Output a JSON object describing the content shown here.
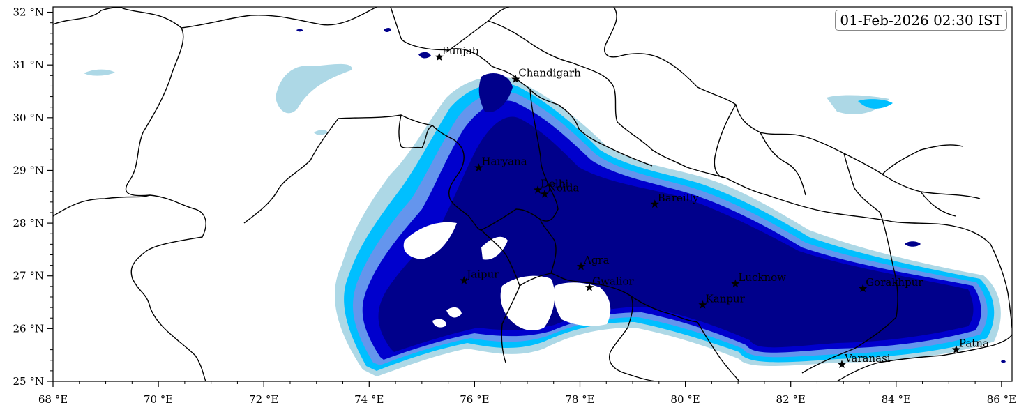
{
  "timestamp": "01-Feb-2026 02:30 IST",
  "map": {
    "lon_range": [
      68,
      86.2
    ],
    "lat_range": [
      25,
      32.1
    ],
    "x_ticks": [
      68,
      70,
      72,
      74,
      76,
      78,
      80,
      82,
      84,
      86
    ],
    "x_tick_labels": [
      "68 °E",
      "70 °E",
      "72 °E",
      "74 °E",
      "76 °E",
      "78 °E",
      "80 °E",
      "82 °E",
      "84 °E",
      "86 °E"
    ],
    "y_ticks": [
      25,
      26,
      27,
      28,
      29,
      30,
      31,
      32
    ],
    "y_tick_labels": [
      "25 °N",
      "26 °N",
      "27 °N",
      "28 °N",
      "29 °N",
      "30 °N",
      "31 °N",
      "32 °N"
    ],
    "colors": {
      "level1": "#add8e6",
      "level2": "#00bfff",
      "level3": "#6495ed",
      "level4": "#0000cd",
      "level5": "#00008b"
    },
    "cities": [
      {
        "name": "Punjab",
        "lon": 75.33,
        "lat": 31.15
      },
      {
        "name": "Chandigarh",
        "lon": 76.78,
        "lat": 30.73
      },
      {
        "name": "Haryana",
        "lon": 76.08,
        "lat": 29.05
      },
      {
        "name": "Delhi",
        "lon": 77.2,
        "lat": 28.63
      },
      {
        "name": "Noida",
        "lon": 77.33,
        "lat": 28.55
      },
      {
        "name": "Bareilly",
        "lon": 79.42,
        "lat": 28.36
      },
      {
        "name": "Agra",
        "lon": 78.02,
        "lat": 27.18
      },
      {
        "name": "Jaipur",
        "lon": 75.8,
        "lat": 26.91
      },
      {
        "name": "Gwalior",
        "lon": 78.18,
        "lat": 26.78
      },
      {
        "name": "Lucknow",
        "lon": 80.95,
        "lat": 26.85
      },
      {
        "name": "Kanpur",
        "lon": 80.33,
        "lat": 26.45
      },
      {
        "name": "Gorakhpur",
        "lon": 83.37,
        "lat": 26.76
      },
      {
        "name": "Varanasi",
        "lon": 82.97,
        "lat": 25.32
      },
      {
        "name": "Patna",
        "lon": 85.14,
        "lat": 25.6
      }
    ]
  }
}
